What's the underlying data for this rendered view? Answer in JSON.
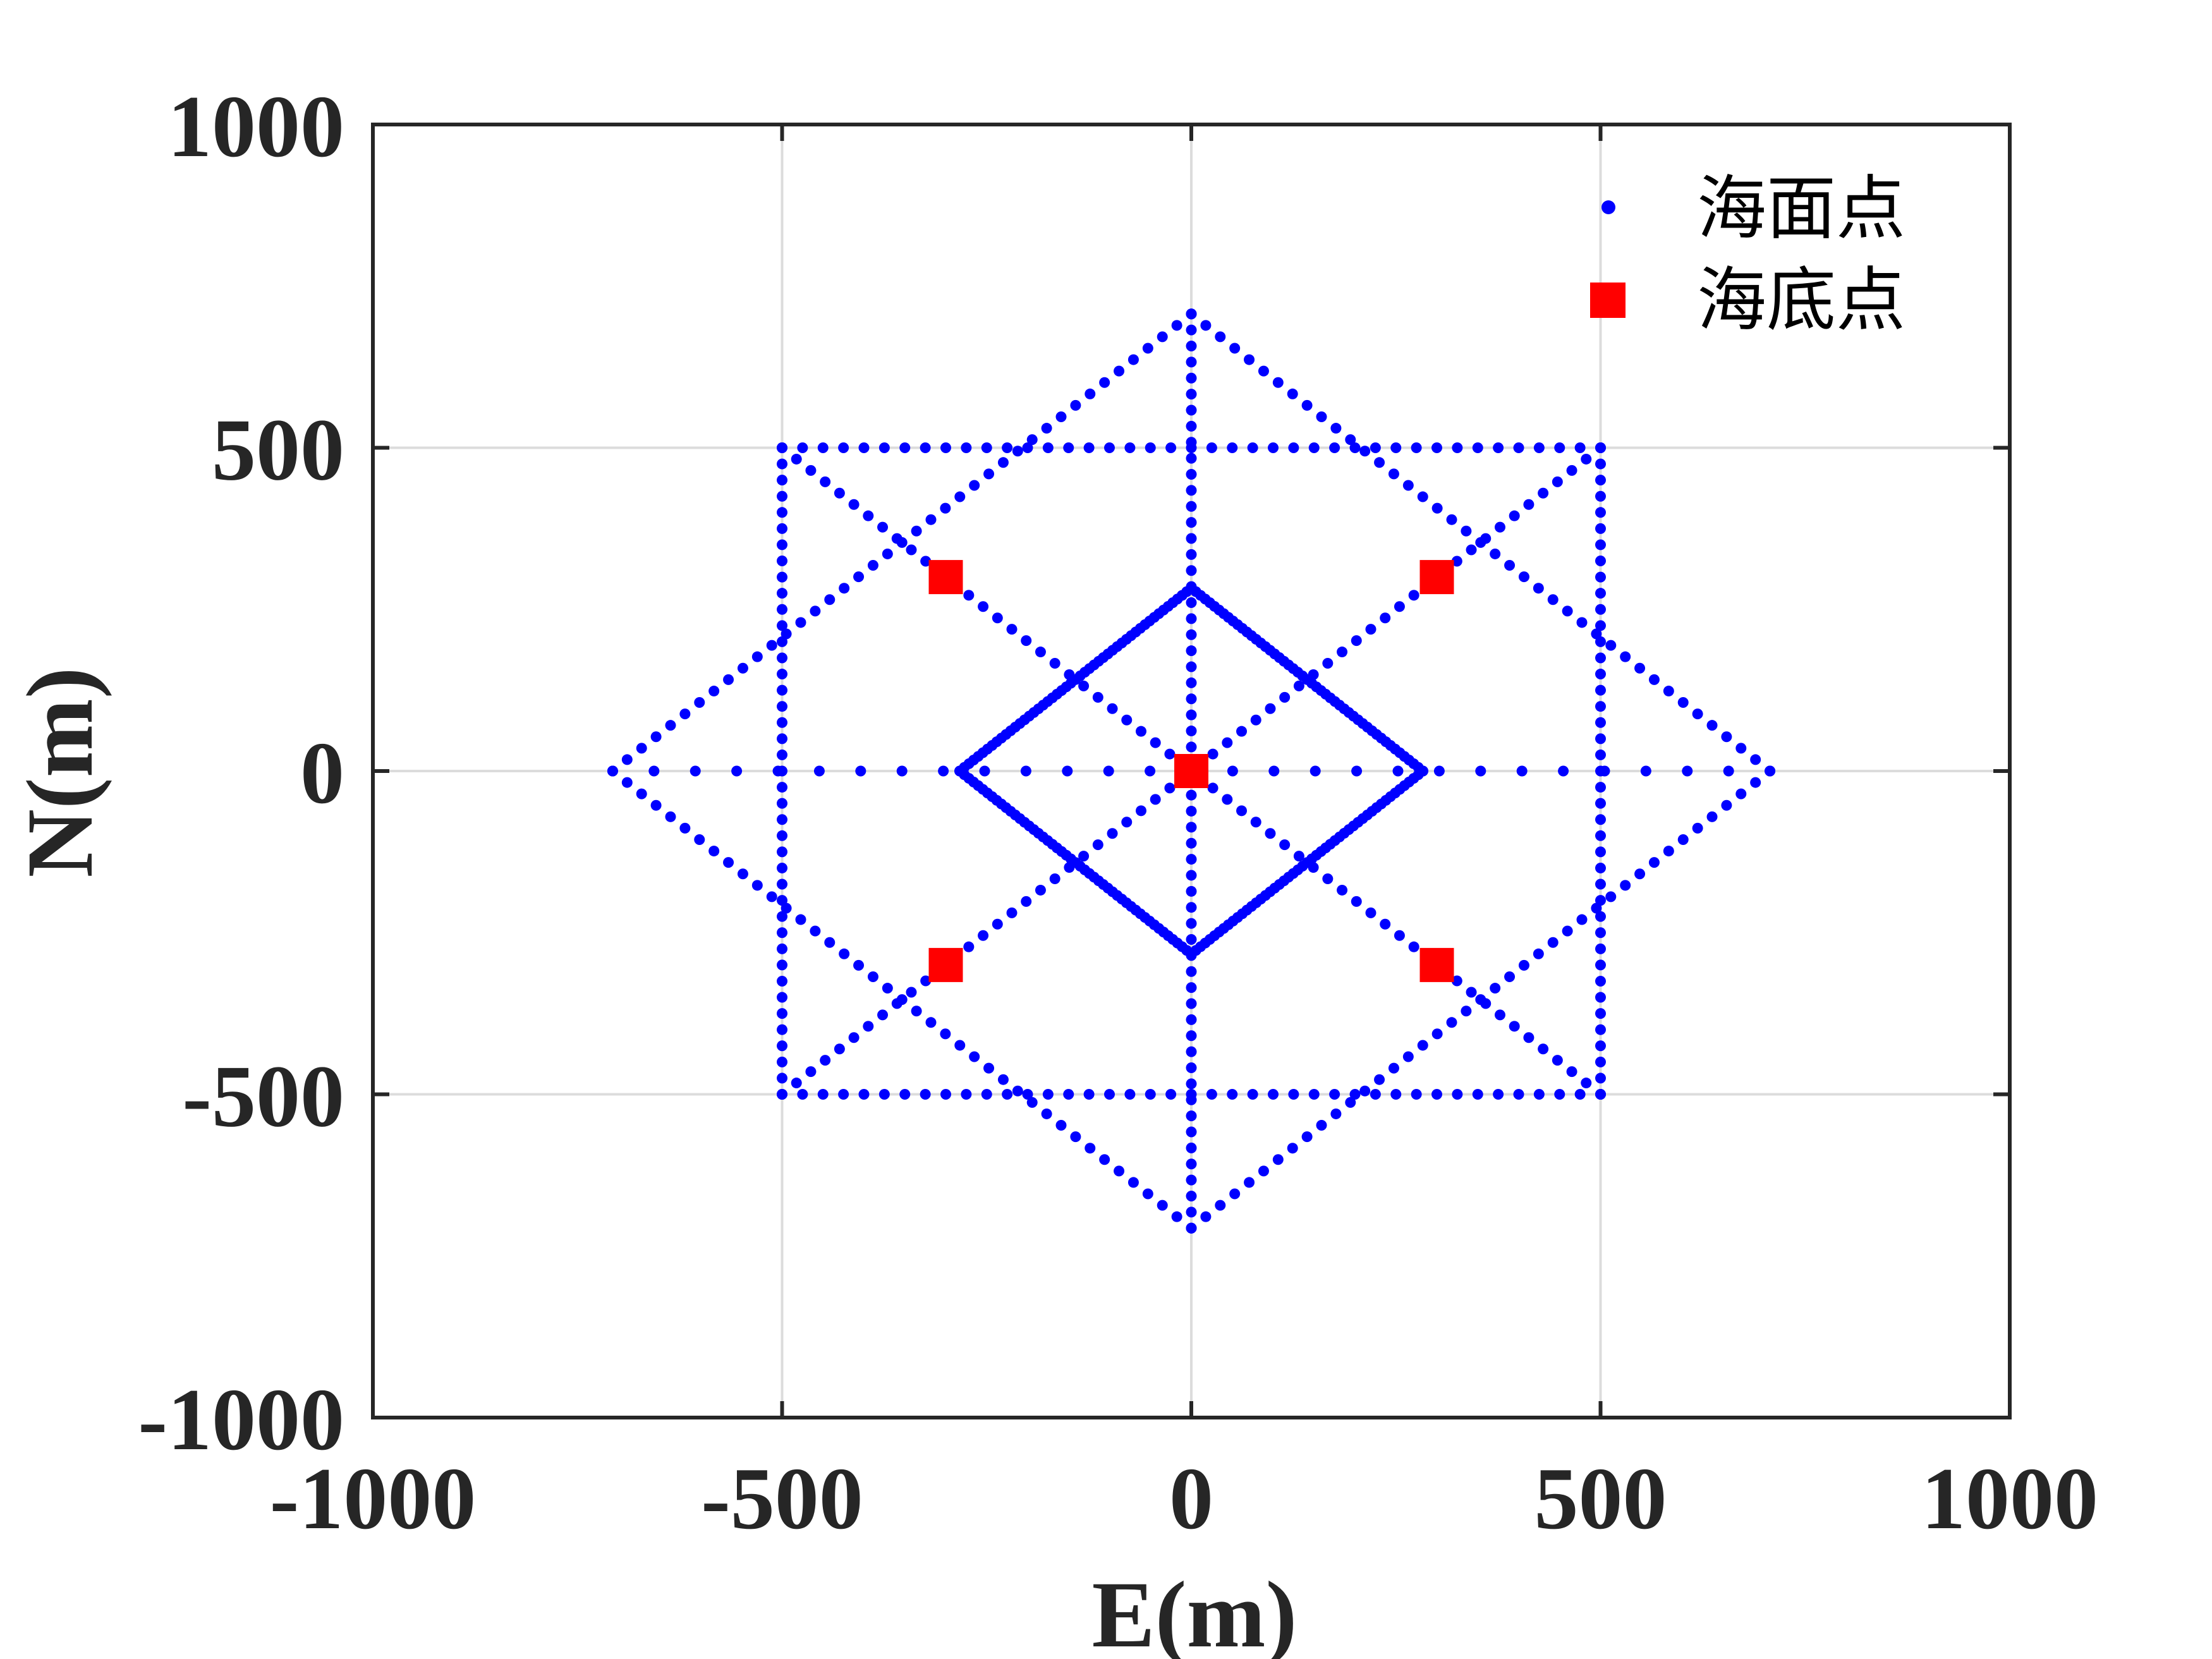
{
  "chart_data": {
    "type": "scatter",
    "xlabel": "E(m)",
    "ylabel": "N(m)",
    "xlim": [
      -1000,
      1000
    ],
    "ylim": [
      -1000,
      1000
    ],
    "xticks": [
      -1000,
      -500,
      0,
      500,
      1000
    ],
    "yticks": [
      -1000,
      -500,
      0,
      500,
      1000
    ],
    "xtick_labels": [
      "-1000",
      "-500",
      "0",
      "500",
      "1000"
    ],
    "ytick_labels": [
      "-1000",
      "-500",
      "0",
      "500",
      "1000"
    ],
    "grid": true,
    "legend_position": "top-right",
    "colors": {
      "surface": "#0000ff",
      "seabed": "#ff0000",
      "axis": "#262626",
      "grid": "#dcdcdc"
    },
    "series": [
      {
        "name": "海面点",
        "marker": "dot",
        "color": "#0000ff",
        "paths": [
          {
            "shape": "square-outline",
            "corners": [
              [
                -500,
                -500
              ],
              [
                500,
                -500
              ],
              [
                500,
                500
              ],
              [
                -500,
                500
              ]
            ],
            "step": 25
          },
          {
            "shape": "diamond-outline",
            "corners": [
              [
                707,
                0
              ],
              [
                0,
                707
              ],
              [
                -707,
                0
              ],
              [
                0,
                -707
              ]
            ],
            "step": 25
          },
          {
            "shape": "diamond-outline",
            "corners": [
              [
                283,
                0
              ],
              [
                0,
                283
              ],
              [
                -283,
                0
              ],
              [
                0,
                -283
              ]
            ],
            "step": 8
          },
          {
            "shape": "line",
            "from": [
              -707,
              0
            ],
            "to": [
              707,
              0
            ],
            "step": 50
          },
          {
            "shape": "line",
            "from": [
              0,
              -707
            ],
            "to": [
              0,
              707
            ],
            "step": 25
          },
          {
            "shape": "line",
            "from": [
              -500,
              -500
            ],
            "to": [
              500,
              500
            ],
            "step": 25
          },
          {
            "shape": "line",
            "from": [
              -500,
              500
            ],
            "to": [
              500,
              -500
            ],
            "step": 25
          }
        ]
      },
      {
        "name": "海底点",
        "marker": "square",
        "color": "#ff0000",
        "points": [
          [
            0,
            0
          ],
          [
            -300,
            300
          ],
          [
            300,
            300
          ],
          [
            -300,
            -300
          ],
          [
            300,
            -300
          ]
        ]
      }
    ]
  }
}
